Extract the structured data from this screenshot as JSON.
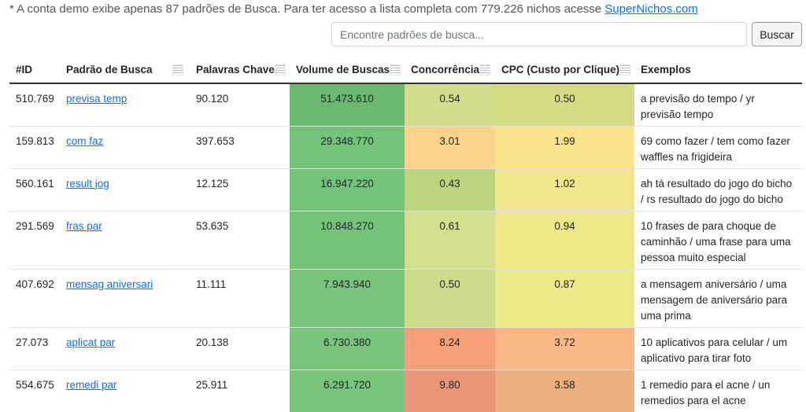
{
  "notice": {
    "text": "* A conta demo exibe apenas 87 padrões de Busca. Para ter acesso a lista completa com 779.226 nichos acesse ",
    "link": "SuperNichos.com"
  },
  "search": {
    "placeholder": "Encontre padrões de busca...",
    "value": "",
    "button_label": "Buscar"
  },
  "table": {
    "headers": {
      "id": "#ID",
      "pattern": "Padrão de Busca",
      "keywords": "Palavras Chave",
      "volume": "Volume de Buscas",
      "competition": "Concorrência",
      "cpc": "CPC (Custo por Clique)",
      "examples": "Exemplos"
    },
    "colors": {
      "volume": [
        "#6ab96f",
        "#73c27a",
        "#75c37a",
        "#75c37a",
        "#79c57d",
        "#79c57d",
        "#78c47c"
      ],
      "competition": [
        "#d2dc8a",
        "#fcd38b",
        "#bcd47e",
        "#d4de8c",
        "#ccdb8a",
        "#f6a07a",
        "#e8957a"
      ],
      "cpc": [
        "#d6db84",
        "#fbe38c",
        "#f0e68a",
        "#eee788",
        "#ece988",
        "#fbb886",
        "#eeb07e"
      ]
    },
    "rows": [
      {
        "id": "510.769",
        "pattern": "previsa temp",
        "keywords": "90.120",
        "volume": "51.473.610",
        "competition": "0.54",
        "cpc": "0.50",
        "examples": "a previsão do tempo / yr previsão tempo"
      },
      {
        "id": "159.813",
        "pattern": "com faz",
        "keywords": "397.653",
        "volume": "29.348.770",
        "competition": "3.01",
        "cpc": "1.99",
        "examples": "69 como fazer / tem como fazer waffles na frigideira"
      },
      {
        "id": "560.161",
        "pattern": "result jog",
        "keywords": "12.125",
        "volume": "16.947.220",
        "competition": "0.43",
        "cpc": "1.02",
        "examples": "ah tá resultado do jogo do bicho / rs resultado do jogo do bicho"
      },
      {
        "id": "291.569",
        "pattern": "fras par",
        "keywords": "53.635",
        "volume": "10.848.270",
        "competition": "0.61",
        "cpc": "0.94",
        "examples": "10 frases de para choque de caminhão / uma frase para uma pessoa muito especial"
      },
      {
        "id": "407.692",
        "pattern": "mensag aniversari",
        "keywords": "11.111",
        "volume": "7.943.940",
        "competition": "0.50",
        "cpc": "0.87",
        "examples": "a mensagem aniversário / uma mensagem de aniversário para uma prima"
      },
      {
        "id": "27.073",
        "pattern": "aplicat par",
        "keywords": "20.138",
        "volume": "6.730.380",
        "competition": "8.24",
        "cpc": "3.72",
        "examples": "10 aplicativos para celular / um aplicativo para tirar foto"
      },
      {
        "id": "554.675",
        "pattern": "remedi par",
        "keywords": "25.911",
        "volume": "6.291.720",
        "competition": "9.80",
        "cpc": "3.58",
        "examples": "1 remedio para el acne / un remedios para el acne"
      }
    ]
  }
}
